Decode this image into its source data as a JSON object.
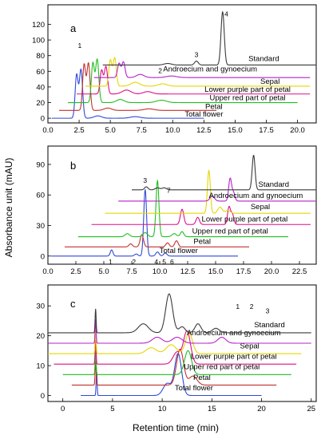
{
  "figure": {
    "ylabel": "Absorbance unit (mAU)",
    "xlabel": "Retention time (min)"
  },
  "colors": {
    "Standard": "#3a3a3a",
    "Androecium and gynoecium": "#b522c9",
    "Sepal": "#e5d600",
    "Lower purple part of petal": "#e00d85",
    "Upper red part of petal": "#1fbf1f",
    "Petal": "#c2312e",
    "Total flower": "#3048d8"
  },
  "chart_data": [
    {
      "type": "line",
      "panel": "a",
      "x_ticks": [
        "0.0",
        "2.5",
        "5.0",
        "7.5",
        "10.0",
        "12.5",
        "15.0",
        "17.5",
        "20.0"
      ],
      "y_ticks": [
        "0",
        "20",
        "40",
        "60",
        "80",
        "100",
        "120"
      ],
      "xlim": [
        0,
        21.5
      ],
      "ylim": [
        -6,
        145
      ],
      "peak_labels": [
        {
          "text": "1",
          "x": 2.55,
          "y": 90
        },
        {
          "text": "2",
          "x": 9.0,
          "y": 58
        },
        {
          "text": "3",
          "x": 11.9,
          "y": 78
        },
        {
          "text": "4",
          "x": 14.3,
          "y": 130
        }
      ],
      "series": [
        {
          "name": "Total flower",
          "x_offset": 0.0,
          "baseline": 0,
          "x_end": 12.5,
          "label_x": 12.5,
          "label_y": 2,
          "peaks": [
            [
              2.3,
              55,
              0.12
            ],
            [
              2.65,
              62,
              0.13
            ],
            [
              4.0,
              3,
              0.3
            ],
            [
              7.0,
              2,
              0.4
            ]
          ]
        },
        {
          "name": "Petal",
          "x_offset": 0.6,
          "baseline": 10,
          "x_end": 13.5,
          "label_x": 13.3,
          "label_y": 12,
          "peaks": [
            [
              2.3,
              58,
              0.12
            ],
            [
              2.65,
              60,
              0.13
            ],
            [
              4.2,
              3,
              0.3
            ],
            [
              7.5,
              2,
              0.4
            ]
          ]
        },
        {
          "name": "Upper red part of petal",
          "x_offset": 1.3,
          "baseline": 20,
          "x_end": 20.0,
          "label_x": 16.0,
          "label_y": 23,
          "peaks": [
            [
              2.3,
              50,
              0.12
            ],
            [
              2.65,
              55,
              0.13
            ],
            [
              4.5,
              4,
              0.3
            ],
            [
              7.8,
              3,
              0.4
            ]
          ]
        },
        {
          "name": "Lower purple part of petal",
          "x_offset": 2.0,
          "baseline": 31,
          "x_end": 21.0,
          "label_x": 16.0,
          "label_y": 34,
          "peaks": [
            [
              2.3,
              30,
              0.12
            ],
            [
              2.65,
              35,
              0.13
            ],
            [
              4.3,
              5,
              0.35
            ],
            [
              6.0,
              3,
              0.35
            ]
          ]
        },
        {
          "name": "Sepal",
          "x_offset": 2.7,
          "baseline": 41,
          "x_end": 21.0,
          "label_x": 17.8,
          "label_y": 44,
          "peaks": [
            [
              2.3,
              33,
              0.12
            ],
            [
              2.65,
              36,
              0.13
            ],
            [
              4.3,
              5,
              0.35
            ],
            [
              6.5,
              3,
              0.35
            ]
          ]
        },
        {
          "name": "Androecium and gynoecium",
          "x_offset": 3.4,
          "baseline": 52,
          "x_end": 21.0,
          "label_x": 13.0,
          "label_y": 60,
          "peaks": [
            [
              2.3,
              18,
              0.12
            ],
            [
              2.65,
              20,
              0.13
            ],
            [
              4.0,
              4,
              0.3
            ],
            [
              6.5,
              2,
              0.4
            ]
          ]
        },
        {
          "name": "Standard",
          "x_offset": 4.1,
          "baseline": 68,
          "x_end": 21.5,
          "label_x": 17.3,
          "label_y": 73,
          "peaks": [
            [
              5.5,
              2,
              0.3
            ],
            [
              7.8,
              5,
              0.15
            ],
            [
              9.9,
              68,
              0.13
            ]
          ]
        }
      ]
    },
    {
      "type": "line",
      "panel": "b",
      "x_ticks": [
        "0.0",
        "2.5",
        "5.0",
        "7.5",
        "10.0",
        "12.5",
        "15.0",
        "17.5",
        "20.0",
        "22.5"
      ],
      "y_ticks": [
        "0",
        "30",
        "60",
        "90"
      ],
      "xlim": [
        0,
        24
      ],
      "ylim": [
        -8,
        108
      ],
      "peak_labels": [
        {
          "text": "1",
          "x": 5.6,
          "y": -8
        },
        {
          "text": "2",
          "x": 7.7,
          "y": -8
        },
        {
          "text": "3",
          "x": 8.7,
          "y": 72
        },
        {
          "text": "4",
          "x": 9.7,
          "y": -8
        },
        {
          "text": "5",
          "x": 10.4,
          "y": -8
        },
        {
          "text": "6",
          "x": 11.1,
          "y": -8
        },
        {
          "text": "7",
          "x": 10.8,
          "y": 62
        }
      ],
      "series": [
        {
          "name": "Total flower",
          "x_offset": 0.0,
          "baseline": 0,
          "x_end": 17.0,
          "label_x": 11.7,
          "label_y": 3,
          "peaks": [
            [
              5.7,
              6,
              0.12
            ],
            [
              7.9,
              2,
              0.15
            ],
            [
              8.7,
              65,
              0.13
            ],
            [
              9.8,
              4,
              0.15
            ],
            [
              10.5,
              3,
              0.15
            ]
          ]
        },
        {
          "name": "Petal",
          "x_offset": 1.2,
          "baseline": 9,
          "x_end": 18.0,
          "label_x": 13.8,
          "label_y": 12,
          "peaks": [
            [
              6.2,
              3,
              0.15
            ],
            [
              7.2,
              12,
              0.15
            ],
            [
              9.5,
              4,
              0.15
            ],
            [
              10.3,
              6,
              0.15
            ]
          ]
        },
        {
          "name": "Upper red part of petal",
          "x_offset": 2.4,
          "baseline": 19,
          "x_end": 21.5,
          "label_x": 16.3,
          "label_y": 22,
          "peaks": [
            [
              4.7,
              3,
              0.2
            ],
            [
              6.3,
              4,
              0.2
            ],
            [
              7.4,
              55,
              0.13
            ],
            [
              8.9,
              3,
              0.2
            ],
            [
              9.6,
              5,
              0.15
            ]
          ]
        },
        {
          "name": "Lower purple part of petal",
          "x_offset": 3.6,
          "baseline": 31,
          "x_end": 23.5,
          "label_x": 17.6,
          "label_y": 34,
          "peaks": [
            [
              8.4,
              15,
              0.15
            ],
            [
              9.8,
              7,
              0.15
            ],
            [
              12.6,
              17,
              0.13
            ],
            [
              12.9,
              10,
              0.13
            ]
          ]
        },
        {
          "name": "Sepal",
          "x_offset": 4.8,
          "baseline": 42,
          "x_end": 23.5,
          "label_x": 19.0,
          "label_y": 46,
          "peaks": [
            [
              9.6,
              42,
              0.13
            ],
            [
              10.6,
              6,
              0.2
            ],
            [
              11.3,
              3,
              0.2
            ]
          ]
        },
        {
          "name": "Androecium and gynoecium",
          "x_offset": 6.0,
          "baseline": 54,
          "x_end": 24.0,
          "label_x": 18.6,
          "label_y": 57,
          "peaks": [
            [
              8.7,
              5,
              0.2
            ],
            [
              10.3,
              22,
              0.13
            ],
            [
              10.6,
              8,
              0.13
            ]
          ]
        },
        {
          "name": "Standard",
          "x_offset": 7.2,
          "baseline": 65,
          "x_end": 24.0,
          "label_x": 20.2,
          "label_y": 68,
          "peaks": [
            [
              1.6,
              3,
              0.15
            ],
            [
              2.6,
              2,
              0.2
            ],
            [
              3.2,
              2,
              0.2
            ],
            [
              11.2,
              34,
              0.13
            ]
          ]
        }
      ]
    },
    {
      "type": "line",
      "panel": "c",
      "x_ticks": [
        "0",
        "5",
        "10",
        "15",
        "20",
        "25"
      ],
      "y_ticks": [
        "0",
        "10",
        "20",
        "30"
      ],
      "xlim": [
        -1.5,
        25.5
      ],
      "ylim": [
        -2,
        37
      ],
      "peak_labels": [
        {
          "text": "1",
          "x": 17.6,
          "y": 29
        },
        {
          "text": "2",
          "x": 19.0,
          "y": 29
        },
        {
          "text": "3",
          "x": 20.6,
          "y": 27.5
        }
      ],
      "series": [
        {
          "name": "Total flower",
          "x_offset": 0.0,
          "baseline": 0,
          "x_end": 20.0,
          "label_x": 13.2,
          "label_y": 1.8,
          "peaks": [
            [
              3.4,
              8,
              0.05
            ],
            [
              10.5,
              4,
              0.4
            ],
            [
              11.6,
              14,
              0.35
            ]
          ]
        },
        {
          "name": "Petal",
          "x_offset": -0.9,
          "baseline": 3.5,
          "x_end": 21.5,
          "label_x": 14.0,
          "label_y": 5.2,
          "peaks": [
            [
              4.2,
              8,
              0.05
            ],
            [
              12.7,
              12,
              0.35
            ],
            [
              14.0,
              3,
              0.4
            ]
          ]
        },
        {
          "name": "Upper red part of petal",
          "x_offset": -1.8,
          "baseline": 7,
          "x_end": 23.0,
          "label_x": 16.0,
          "label_y": 8.8,
          "peaks": [
            [
              5.1,
              8,
              0.05
            ],
            [
              14.4,
              8,
              0.35
            ]
          ]
        },
        {
          "name": "Lower purple part of petal",
          "x_offset": -2.7,
          "baseline": 10.5,
          "x_end": 23.5,
          "label_x": 17.2,
          "label_y": 12.3,
          "peaks": [
            [
              6.0,
              8,
              0.05
            ],
            [
              14.2,
              4,
              0.4
            ],
            [
              15.2,
              11,
              0.35
            ]
          ]
        },
        {
          "name": "Sepal",
          "x_offset": -3.6,
          "baseline": 14,
          "x_end": 24.0,
          "label_x": 18.8,
          "label_y": 15.8,
          "peaks": [
            [
              6.9,
              8,
              0.05
            ],
            [
              12.5,
              2,
              0.5
            ],
            [
              14.5,
              3,
              0.5
            ],
            [
              16.3,
              7,
              0.35
            ]
          ]
        },
        {
          "name": "Androecium and gynoecium",
          "x_offset": -4.5,
          "baseline": 17.5,
          "x_end": 25.0,
          "label_x": 17.2,
          "label_y": 20.2,
          "peaks": [
            [
              7.8,
              8,
              0.05
            ],
            [
              14.0,
              2,
              0.5
            ],
            [
              16.0,
              2,
              0.5
            ],
            [
              20.5,
              2,
              0.4
            ]
          ]
        },
        {
          "name": "Standard",
          "x_offset": -5.4,
          "baseline": 21,
          "x_end": 25.0,
          "label_x": 20.8,
          "label_y": 22.8,
          "peaks": [
            [
              8.7,
              8,
              0.05
            ],
            [
              13.5,
              3,
              0.5
            ],
            [
              16.1,
              13,
              0.35
            ],
            [
              17.4,
              2,
              0.3
            ],
            [
              19.0,
              3,
              0.3
            ],
            [
              20.8,
              1.5,
              0.35
            ]
          ]
        }
      ]
    }
  ]
}
